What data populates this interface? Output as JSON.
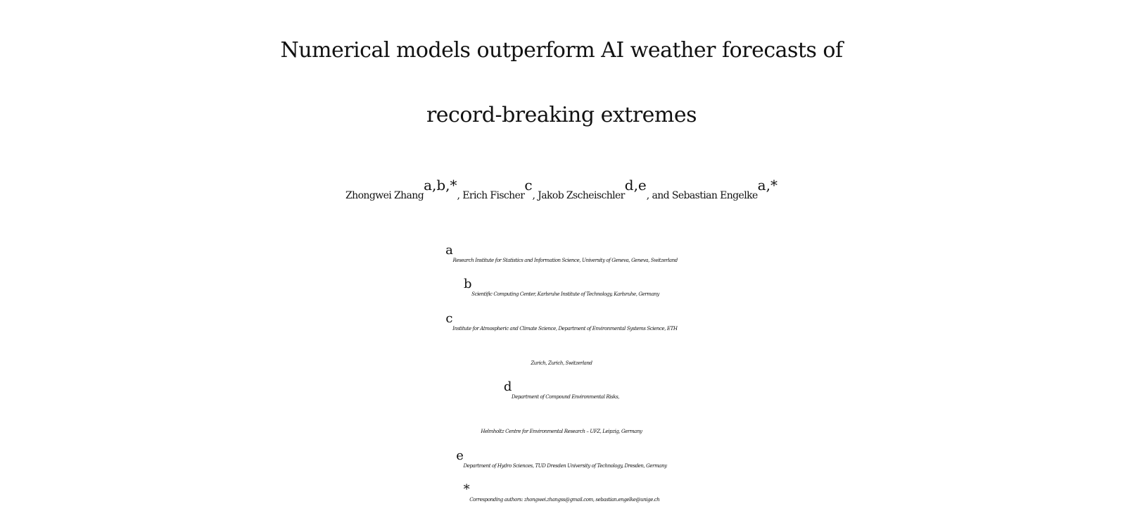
{
  "title": {
    "line1": "Numerical models outperform AI weather forecasts of",
    "line2": "record-breaking extremes"
  },
  "authors": [
    {
      "name": "Zhongwei Zhang",
      "sup": "a,b,*",
      "sep": ", "
    },
    {
      "name": "Erich Fischer",
      "sup": "c",
      "sep": ", "
    },
    {
      "name": "Jakob Zscheischler",
      "sup": "d,e",
      "sep": ", and "
    },
    {
      "name": "Sebastian Engelke",
      "sup": "a,*",
      "sep": ""
    }
  ],
  "affiliations": {
    "a": {
      "mark": "a",
      "text": "Research Institute for Statistics and Information Science, University of Geneva, Geneva, Switzerland"
    },
    "b": {
      "mark": "b",
      "text": "Scientific Computing Center, Karlsruhe Institute of Technology, Karlsruhe, Germany"
    },
    "c": {
      "mark": "c",
      "line1": "Institute for Atmospheric and Climate Science, Department of Environmental Systems Science, ETH",
      "line2": "Zurich, Zurich, Switzerland"
    },
    "d": {
      "mark": "d",
      "line1": "Department of Compound Environmental Risks,",
      "line2": "Helmholtz Centre for Environmental Research – UFZ, Leipzig, Germany"
    },
    "e": {
      "mark": "e",
      "text": "Department of Hydro Sciences, TUD Dresden University of Technology, Dresden, Germany"
    }
  },
  "corresponding": {
    "mark": "*",
    "text": "Corresponding authors: zhongwei.zhangss@gmail.com, sebastian.engelke@unige.ch"
  }
}
